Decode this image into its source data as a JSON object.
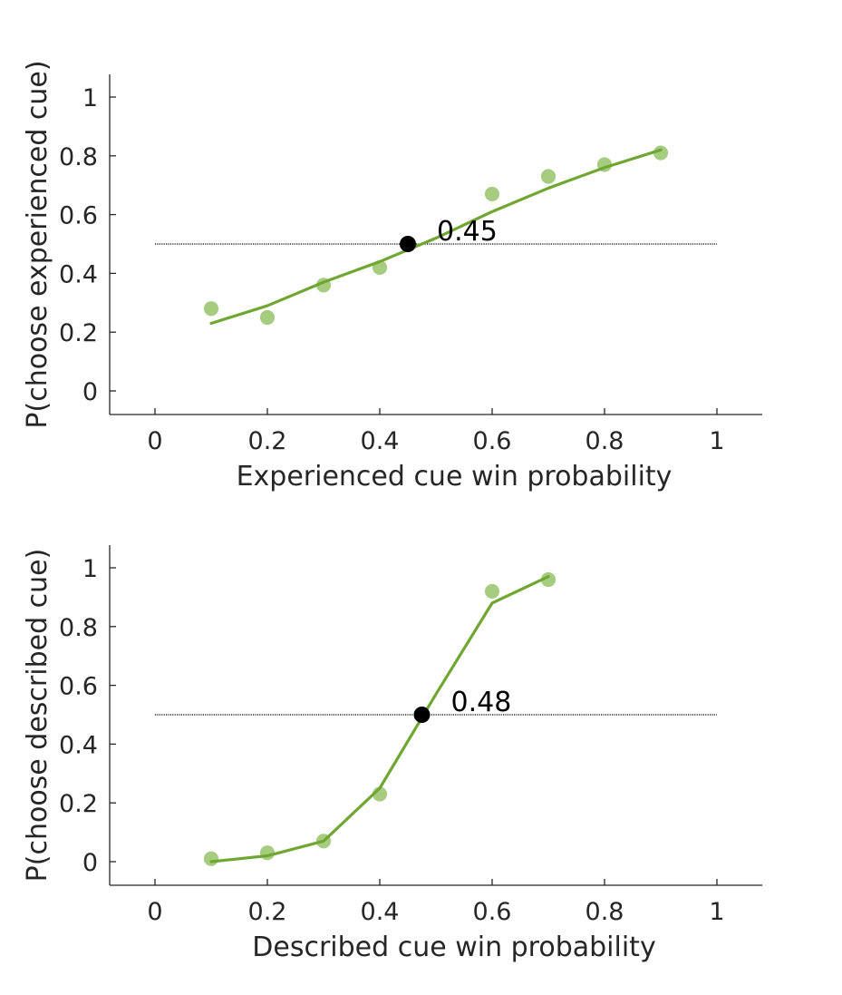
{
  "chart_data": [
    {
      "type": "line",
      "xlabel": "Experienced cue win probability",
      "ylabel": "P(choose experienced cue)",
      "xlim": [
        -0.08,
        1.08
      ],
      "ylim": [
        -0.08,
        1.08
      ],
      "xticks": [
        0,
        0.2,
        0.4,
        0.6,
        0.8,
        1
      ],
      "xtick_labels": [
        "0",
        "0.2",
        "0.4",
        "0.6",
        "0.8",
        "1"
      ],
      "yticks": [
        0,
        0.2,
        0.4,
        0.6,
        0.8,
        1
      ],
      "ytick_labels": [
        "0",
        "0.2",
        "0.4",
        "0.6",
        "0.8",
        "1"
      ],
      "grid": false,
      "reference_line": {
        "y": 0.5,
        "x_range": [
          0,
          1
        ],
        "style": "dotted"
      },
      "series": [
        {
          "kind": "scatter",
          "color": "#a6cc80",
          "x": [
            0.1,
            0.2,
            0.3,
            0.4,
            0.6,
            0.7,
            0.8,
            0.9
          ],
          "y": [
            0.28,
            0.25,
            0.36,
            0.42,
            0.67,
            0.73,
            0.77,
            0.81
          ]
        },
        {
          "kind": "line",
          "color": "#70a632",
          "x": [
            0.1,
            0.2,
            0.3,
            0.4,
            0.5,
            0.6,
            0.7,
            0.8,
            0.9
          ],
          "y": [
            0.23,
            0.29,
            0.37,
            0.44,
            0.52,
            0.61,
            0.69,
            0.76,
            0.82
          ]
        }
      ],
      "threshold": {
        "x": 0.45,
        "y": 0.5,
        "label": "0.45",
        "color": "#000000"
      }
    },
    {
      "type": "line",
      "xlabel": "Described cue win probability",
      "ylabel": "P(choose described cue)",
      "xlim": [
        -0.08,
        1.08
      ],
      "ylim": [
        -0.08,
        1.08
      ],
      "xticks": [
        0,
        0.2,
        0.4,
        0.6,
        0.8,
        1
      ],
      "xtick_labels": [
        "0",
        "0.2",
        "0.4",
        "0.6",
        "0.8",
        "1"
      ],
      "yticks": [
        0,
        0.2,
        0.4,
        0.6,
        0.8,
        1
      ],
      "ytick_labels": [
        "0",
        "0.2",
        "0.4",
        "0.6",
        "0.8",
        "1"
      ],
      "grid": false,
      "reference_line": {
        "y": 0.5,
        "x_range": [
          0,
          1
        ],
        "style": "dotted"
      },
      "series": [
        {
          "kind": "scatter",
          "color": "#a6cc80",
          "x": [
            0.1,
            0.2,
            0.3,
            0.4,
            0.6,
            0.7
          ],
          "y": [
            0.01,
            0.03,
            0.07,
            0.23,
            0.92,
            0.96
          ]
        },
        {
          "kind": "line",
          "color": "#70a632",
          "x": [
            0.1,
            0.2,
            0.3,
            0.4,
            0.5,
            0.6,
            0.7
          ],
          "y": [
            0.0,
            0.02,
            0.07,
            0.25,
            0.57,
            0.88,
            0.97
          ]
        }
      ],
      "threshold": {
        "x": 0.475,
        "y": 0.5,
        "label": "0.48",
        "color": "#000000"
      }
    }
  ]
}
